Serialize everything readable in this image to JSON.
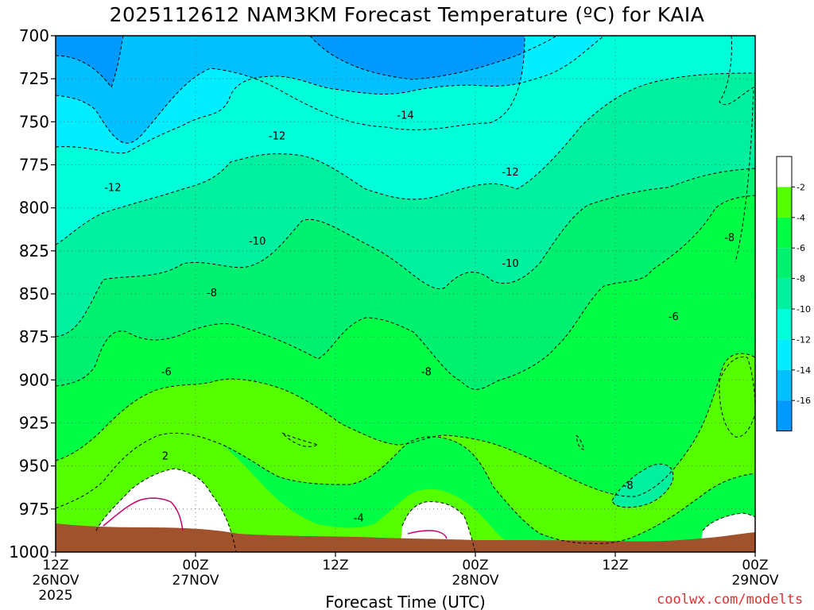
{
  "title": "2025112612 NAM3KM Forecast Temperature (ºC) for KAIA",
  "credit": "coolwx.com/modelts",
  "chart_data": {
    "type": "heatmap",
    "subtype": "filled-contour time-height cross section",
    "xlabel": "Forecast Time (UTC)",
    "ylabel": "",
    "xlim": [
      0,
      60
    ],
    "x_unit": "hours after 12Z 26NOV2025",
    "ylim": [
      1000,
      700
    ],
    "y_unit": "hPa",
    "yticks": [
      700,
      725,
      750,
      775,
      800,
      825,
      850,
      875,
      900,
      925,
      950,
      975,
      1000
    ],
    "xticks": [
      {
        "x": 0,
        "lines": [
          "12Z",
          "26NOV",
          "2025"
        ]
      },
      {
        "x": 12,
        "lines": [
          "00Z",
          "27NOV"
        ]
      },
      {
        "x": 24,
        "lines": [
          "12Z",
          ""
        ]
      },
      {
        "x": 36,
        "lines": [
          "00Z",
          "28NOV"
        ]
      },
      {
        "x": 48,
        "lines": [
          "12Z",
          ""
        ]
      },
      {
        "x": 60,
        "lines": [
          "00Z",
          "29NOV"
        ]
      }
    ],
    "grid": "dotted",
    "colorbar": {
      "labels": [
        "-2",
        "-4",
        "-6",
        "-8",
        "-10",
        "-12",
        "-14",
        "-16"
      ],
      "bins": [
        {
          "hi": 0,
          "lo": -2,
          "color": "#ffffff"
        },
        {
          "hi": -2,
          "lo": -4,
          "color": "#55ff00"
        },
        {
          "hi": -4,
          "lo": -6,
          "color": "#00ff44"
        },
        {
          "hi": -6,
          "lo": -8,
          "color": "#00f070"
        },
        {
          "hi": -8,
          "lo": -10,
          "color": "#00f0a0"
        },
        {
          "hi": -10,
          "lo": -12,
          "color": "#00ffd8"
        },
        {
          "hi": -12,
          "lo": -14,
          "color": "#00eeff"
        },
        {
          "hi": -14,
          "lo": -16,
          "color": "#00c0ff"
        },
        {
          "hi": -16,
          "lo": -18,
          "color": "#0099ff"
        }
      ]
    },
    "underground_color": "#a0522d",
    "contour_labels": [
      {
        "text": "-14",
        "x": 30.0,
        "p": 746
      },
      {
        "text": "-12",
        "x": 19.0,
        "p": 758
      },
      {
        "text": "-12",
        "x": 4.9,
        "p": 788
      },
      {
        "text": "-12",
        "x": 39.0,
        "p": 779
      },
      {
        "text": "-10",
        "x": 17.3,
        "p": 819
      },
      {
        "text": "-10",
        "x": 39.0,
        "p": 832
      },
      {
        "text": "-8",
        "x": 13.4,
        "p": 849
      },
      {
        "text": "-8",
        "x": 31.8,
        "p": 895
      },
      {
        "text": "-8",
        "x": 57.8,
        "p": 817
      },
      {
        "text": "-8",
        "x": 49.1,
        "p": 961
      },
      {
        "text": "-6",
        "x": 9.5,
        "p": 895
      },
      {
        "text": "-6",
        "x": 53.0,
        "p": 863
      },
      {
        "text": "-4",
        "x": 26.0,
        "p": 980
      },
      {
        "text": "2",
        "x": 9.4,
        "p": 944
      }
    ],
    "regions": [
      {
        "color_bin": -2,
        "note": "white above-freezing pocket near surface",
        "points": [
          [
            2.0,
            1000
          ],
          [
            2.3,
            990
          ],
          [
            3.8,
            970
          ],
          [
            5.8,
            957
          ],
          [
            8.1,
            951
          ],
          [
            9.6,
            948
          ],
          [
            11.0,
            952
          ],
          [
            12.8,
            966
          ],
          [
            13.5,
            988
          ],
          [
            12.0,
            1000
          ]
        ]
      },
      {
        "color_bin": -2,
        "note": "white pocket around 28NOV",
        "points": [
          [
            30.0,
            1000
          ],
          [
            30.5,
            990
          ],
          [
            32.1,
            978
          ],
          [
            33.2,
            972
          ],
          [
            34.7,
            973
          ],
          [
            35.5,
            983
          ],
          [
            36.0,
            1000
          ]
        ]
      },
      {
        "color_bin": -2,
        "note": "white pocket near 29NOV",
        "points": [
          [
            57.5,
            1000
          ],
          [
            58.5,
            986
          ],
          [
            60,
            984
          ],
          [
            60,
            1000
          ]
        ]
      }
    ],
    "levels_sampled": [
      {
        "p": 710,
        "t_at_x": [
          [
            0,
            -17
          ],
          [
            4,
            -16.5
          ],
          [
            10,
            -15
          ],
          [
            16,
            -14
          ],
          [
            22,
            -16
          ],
          [
            30,
            -16
          ],
          [
            38,
            -15
          ],
          [
            44,
            -13
          ],
          [
            50,
            -11
          ],
          [
            56,
            -10
          ],
          [
            60,
            -9
          ]
        ]
      },
      {
        "p": 800,
        "t_at_x": [
          [
            0,
            -12
          ],
          [
            10,
            -11
          ],
          [
            20,
            -10
          ],
          [
            30,
            -11
          ],
          [
            38,
            -11
          ],
          [
            44,
            -10
          ],
          [
            50,
            -8
          ],
          [
            56,
            -7
          ],
          [
            60,
            -7
          ]
        ]
      },
      {
        "p": 900,
        "t_at_x": [
          [
            0,
            -5
          ],
          [
            10,
            -6
          ],
          [
            20,
            -7
          ],
          [
            30,
            -8
          ],
          [
            36,
            -8
          ],
          [
            44,
            -8
          ],
          [
            50,
            -7
          ],
          [
            56,
            -6
          ],
          [
            60,
            -5
          ]
        ]
      },
      {
        "p": 975,
        "t_at_x": [
          [
            0,
            -3
          ],
          [
            6,
            1
          ],
          [
            10,
            2
          ],
          [
            14,
            -3
          ],
          [
            20,
            -5
          ],
          [
            26,
            -4
          ],
          [
            32,
            -1
          ],
          [
            38,
            -4
          ],
          [
            46,
            -8
          ],
          [
            52,
            -7
          ],
          [
            58,
            -3
          ],
          [
            60,
            -1
          ]
        ]
      }
    ]
  }
}
